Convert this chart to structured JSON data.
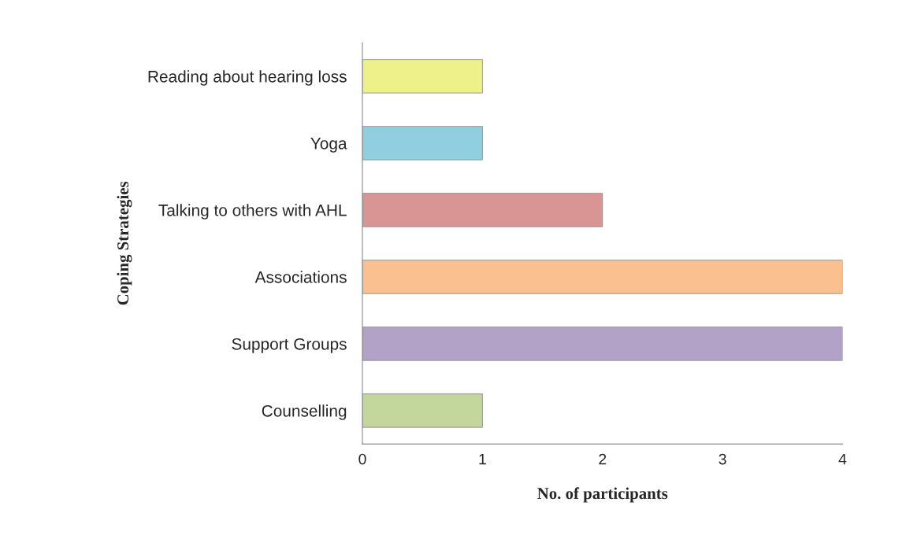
{
  "chart_data": {
    "type": "bar",
    "orientation": "horizontal",
    "xlabel": "No. of participants",
    "ylabel": "Coping Strategies",
    "categories": [
      "Reading about hearing loss",
      "Yoga",
      "Talking to others with AHL",
      "Associations",
      "Support Groups",
      "Counselling"
    ],
    "values": [
      1,
      1,
      2,
      4,
      4,
      1
    ],
    "colors": [
      "#eef08a",
      "#8fcfdf",
      "#d99594",
      "#fac090",
      "#b3a2c7",
      "#c3d69b"
    ],
    "xlim": [
      0,
      4
    ],
    "xticks": [
      0,
      1,
      2,
      3,
      4
    ],
    "grid": false,
    "legend": false
  }
}
